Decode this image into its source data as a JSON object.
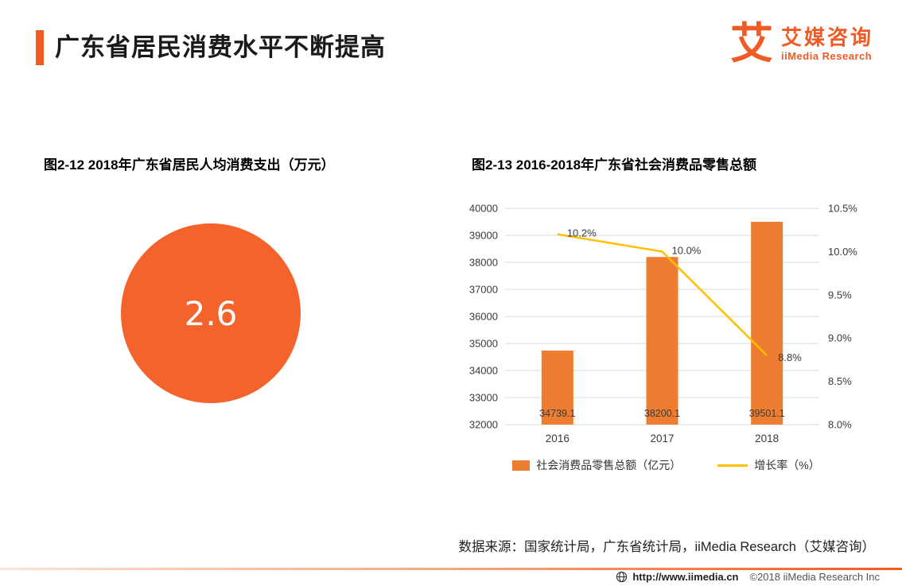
{
  "page": {
    "title": "广东省居民消费水平不断提高",
    "logo": {
      "glyph": "艾",
      "brand": "艾媒咨询",
      "subtitle": "iiMedia Research"
    },
    "source_note": "数据来源：国家统计局，广东省统计局，iiMedia Research（艾媒咨询）",
    "footer": {
      "url": "http://www.iimedia.cn",
      "copyright": "©2018  iiMedia Research Inc"
    }
  },
  "colors": {
    "accent": "#F15A24",
    "bar": "#ED7D31",
    "line": "#FFC000",
    "circle": "#F4632B",
    "grid": "#d8d8d8",
    "axis_text": "#3a3a3a"
  },
  "chart_data": [
    {
      "type": "pie",
      "subtype": "single-value-circle",
      "title": "图2-12 2018年广东省居民人均消费支出（万元）",
      "value": "2.6",
      "unit": "万元"
    },
    {
      "type": "bar",
      "subtype": "bar+line combo",
      "title": "图2-13 2016-2018年广东省社会消费品零售总额",
      "categories": [
        "2016",
        "2017",
        "2018"
      ],
      "series": [
        {
          "name": "社会消费品零售总额（亿元）",
          "kind": "bar",
          "axis": "left",
          "values": [
            34739.1,
            38200.1,
            39501.1
          ]
        },
        {
          "name": "增长率（%）",
          "kind": "line",
          "axis": "right",
          "values": [
            10.2,
            10.0,
            8.8
          ]
        }
      ],
      "bar_labels": [
        "34739.1",
        "38200.1",
        "39501.1"
      ],
      "line_labels": [
        "10.2%",
        "10.0%",
        "8.8%"
      ],
      "left_axis": {
        "min": 32000,
        "max": 40000,
        "step": 1000,
        "ticks": [
          "32000",
          "33000",
          "34000",
          "35000",
          "36000",
          "37000",
          "38000",
          "39000",
          "40000"
        ]
      },
      "right_axis": {
        "min": 8.0,
        "max": 10.5,
        "step": 0.5,
        "ticks": [
          "8.0%",
          "8.5%",
          "9.0%",
          "9.5%",
          "10.0%",
          "10.5%"
        ]
      },
      "grid": true,
      "legend_position": "bottom"
    }
  ]
}
